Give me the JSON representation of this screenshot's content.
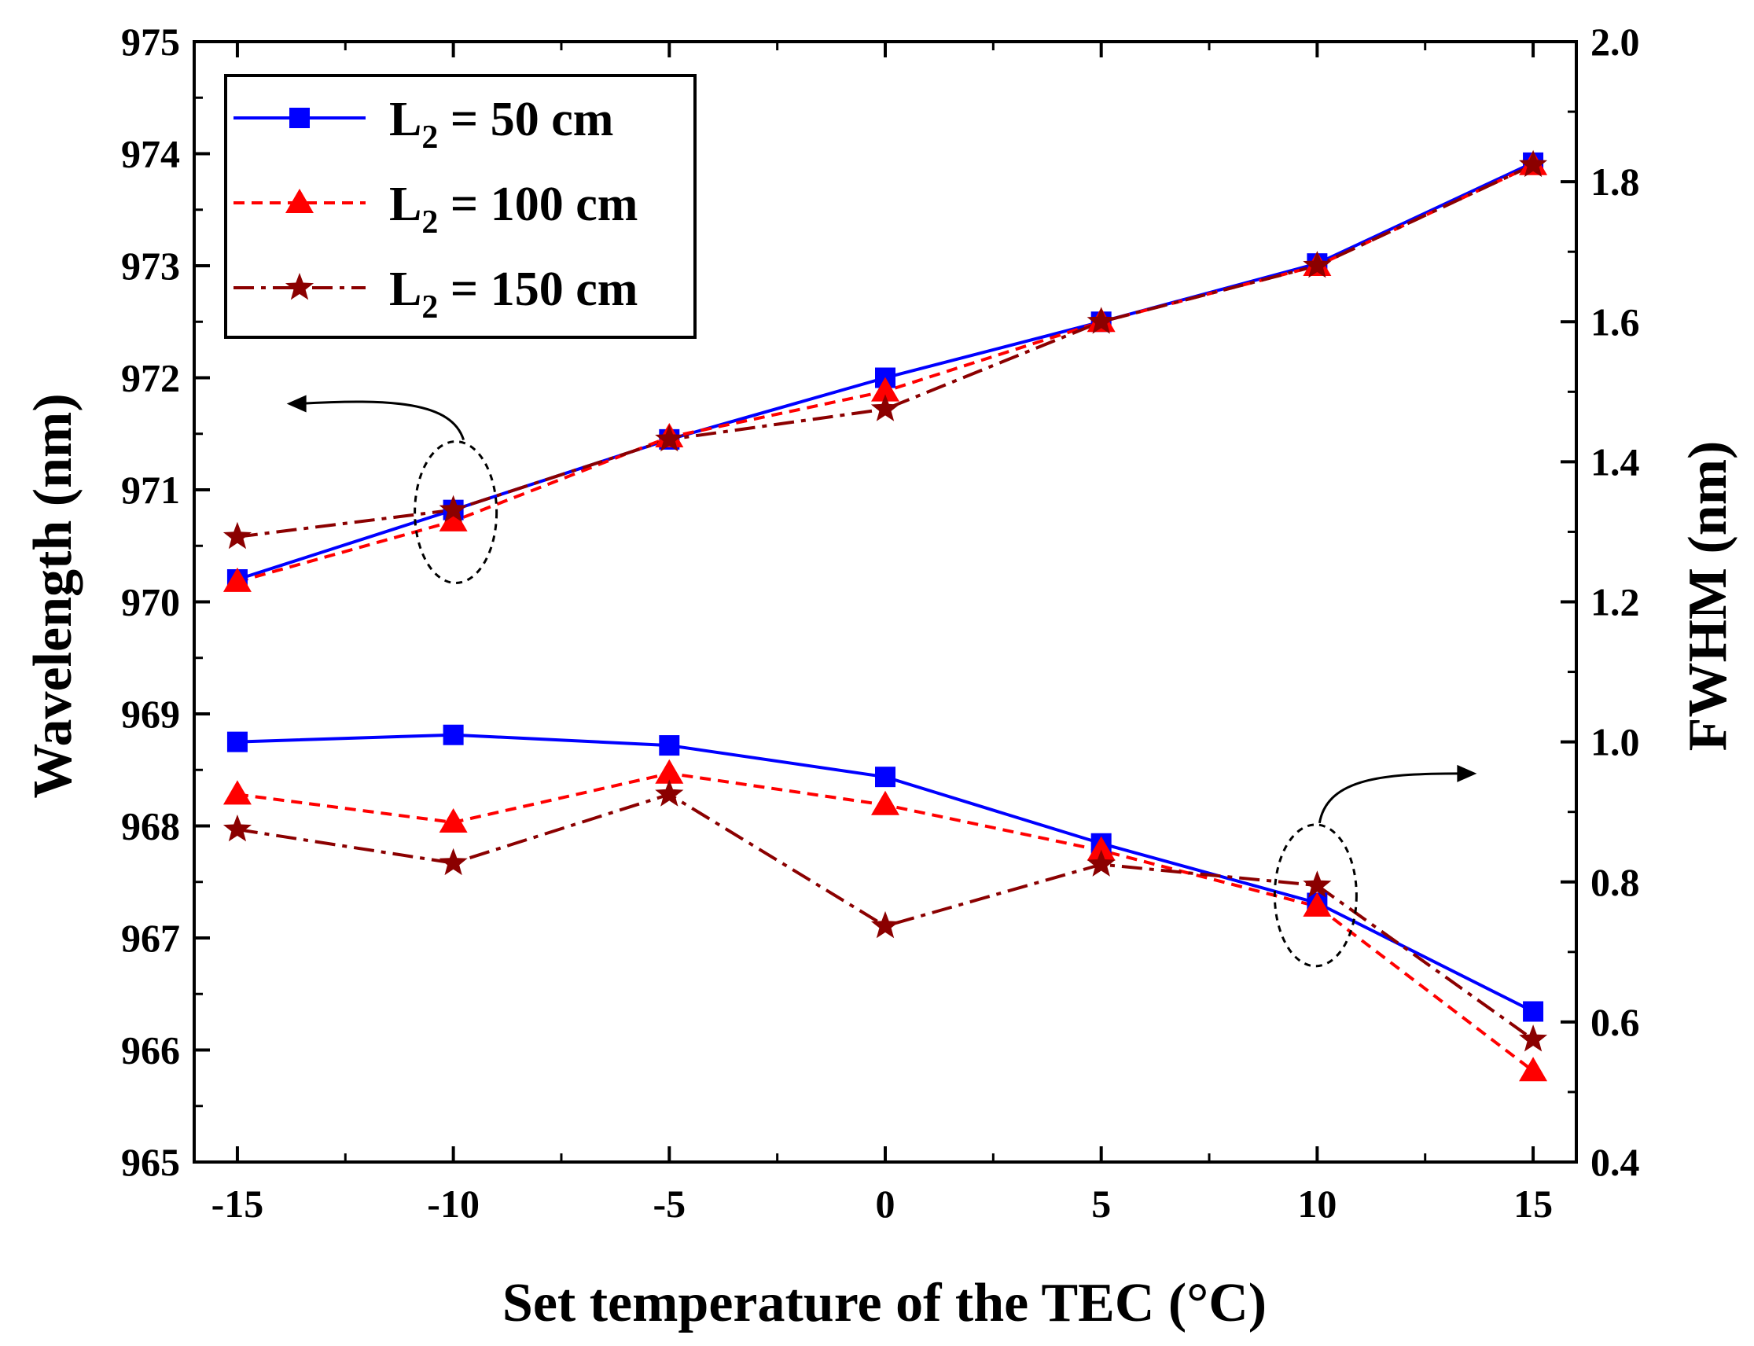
{
  "chart_data": {
    "type": "line",
    "x": [
      -15,
      -10,
      -5,
      0,
      5,
      10,
      15
    ],
    "xlabel": "Set temperature of the TEC (°C)",
    "xlim": [
      -16,
      16
    ],
    "xticks": [
      -15,
      -10,
      -5,
      0,
      5,
      10,
      15
    ],
    "ylabel": "Wavelength (nm)",
    "ylim": [
      965,
      975
    ],
    "yticks": [
      965,
      966,
      967,
      968,
      969,
      970,
      971,
      972,
      973,
      974,
      975
    ],
    "y2label": "FWHM (nm)",
    "y2lim": [
      0.4,
      2.0
    ],
    "y2ticks": [
      "0.4",
      "0.6",
      "0.8",
      "1.0",
      "1.2",
      "1.4",
      "1.6",
      "1.8",
      "2.0"
    ],
    "grid": false,
    "legend_position": "top-left",
    "series": [
      {
        "name": "L2 = 50 cm",
        "legend_main": "L",
        "legend_sub": "2",
        "legend_rest": " = 50 cm",
        "color": "#0000ff",
        "marker": "square",
        "dash": "solid",
        "wavelength": [
          970.2,
          970.82,
          971.45,
          972.0,
          972.5,
          973.02,
          973.92
        ],
        "fwhm": [
          1.0,
          1.01,
          0.995,
          0.95,
          0.855,
          0.77,
          0.615
        ]
      },
      {
        "name": "L2 = 100 cm",
        "legend_main": "L",
        "legend_sub": "2",
        "legend_rest": " = 100 cm",
        "color": "#ff0000",
        "marker": "triangle",
        "dash": "dashed",
        "wavelength": [
          970.18,
          970.72,
          971.47,
          971.88,
          972.5,
          973.0,
          973.9
        ],
        "fwhm": [
          0.925,
          0.885,
          0.955,
          0.91,
          0.845,
          0.765,
          0.53
        ]
      },
      {
        "name": "L2 = 150 cm",
        "legend_main": "L",
        "legend_sub": "2",
        "legend_rest": " = 150 cm",
        "color": "#8b0000",
        "marker": "star",
        "dash": "dashdot",
        "wavelength": [
          970.58,
          970.82,
          971.45,
          971.72,
          972.5,
          973.0,
          973.9
        ],
        "fwhm": [
          0.875,
          0.827,
          0.925,
          0.737,
          0.825,
          0.795,
          0.575
        ]
      }
    ],
    "annotations": [
      {
        "type": "ellipse-arrow",
        "target_axis": "left",
        "at_x": -10,
        "description": "wavelength curves refer to left axis"
      },
      {
        "type": "ellipse-arrow",
        "target_axis": "right",
        "at_x": 10,
        "description": "FWHM curves refer to right axis"
      }
    ]
  }
}
